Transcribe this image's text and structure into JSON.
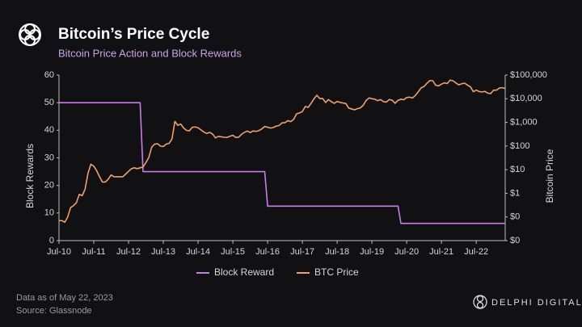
{
  "chart_data": {
    "type": "line",
    "title": "Bitcoin’s Price Cycle",
    "subtitle": "Bitcoin Price Action and Block Rewards",
    "ylabel": "Block Rewards",
    "y2label": "Bitcoin Price",
    "x": [
      "2010-07",
      "2010-08",
      "2010-09",
      "2010-10",
      "2010-11",
      "2010-12",
      "2011-01",
      "2011-02",
      "2011-03",
      "2011-04",
      "2011-05",
      "2011-06",
      "2011-07",
      "2011-08",
      "2011-09",
      "2011-10",
      "2011-11",
      "2011-12",
      "2012-01",
      "2012-02",
      "2012-03",
      "2012-04",
      "2012-05",
      "2012-06",
      "2012-07",
      "2012-08",
      "2012-09",
      "2012-10",
      "2012-11",
      "2012-12",
      "2013-01",
      "2013-02",
      "2013-03",
      "2013-04",
      "2013-05",
      "2013-06",
      "2013-07",
      "2013-08",
      "2013-09",
      "2013-10",
      "2013-11",
      "2013-12",
      "2014-01",
      "2014-02",
      "2014-03",
      "2014-04",
      "2014-05",
      "2014-06",
      "2014-07",
      "2014-08",
      "2014-09",
      "2014-10",
      "2014-11",
      "2014-12",
      "2015-01",
      "2015-02",
      "2015-03",
      "2015-04",
      "2015-05",
      "2015-06",
      "2015-07",
      "2015-08",
      "2015-09",
      "2015-10",
      "2015-11",
      "2015-12",
      "2016-01",
      "2016-02",
      "2016-03",
      "2016-04",
      "2016-05",
      "2016-06",
      "2016-07",
      "2016-08",
      "2016-09",
      "2016-10",
      "2016-11",
      "2016-12",
      "2017-01",
      "2017-02",
      "2017-03",
      "2017-04",
      "2017-05",
      "2017-06",
      "2017-07",
      "2017-08",
      "2017-09",
      "2017-10",
      "2017-11",
      "2017-12",
      "2018-01",
      "2018-02",
      "2018-03",
      "2018-04",
      "2018-05",
      "2018-06",
      "2018-07",
      "2018-08",
      "2018-09",
      "2018-10",
      "2018-11",
      "2018-12",
      "2019-01",
      "2019-02",
      "2019-03",
      "2019-04",
      "2019-05",
      "2019-06",
      "2019-07",
      "2019-08",
      "2019-09",
      "2019-10",
      "2019-11",
      "2019-12",
      "2020-01",
      "2020-02",
      "2020-03",
      "2020-04",
      "2020-05",
      "2020-06",
      "2020-07",
      "2020-08",
      "2020-09",
      "2020-10",
      "2020-11",
      "2020-12",
      "2021-01",
      "2021-02",
      "2021-03",
      "2021-04",
      "2021-05",
      "2021-06",
      "2021-07",
      "2021-08",
      "2021-09",
      "2021-10",
      "2021-11",
      "2021-12",
      "2022-01",
      "2022-02",
      "2022-03",
      "2022-04",
      "2022-05",
      "2022-06",
      "2022-07",
      "2022-08",
      "2022-09",
      "2022-10",
      "2022-11",
      "2022-12",
      "2023-01",
      "2023-02",
      "2023-03",
      "2023-04",
      "2023-05"
    ],
    "series": [
      {
        "name": "Block Reward",
        "color": "#c97be6",
        "axis": "y",
        "values": [
          50,
          50,
          50,
          50,
          50,
          50,
          50,
          50,
          50,
          50,
          50,
          50,
          50,
          50,
          50,
          50,
          50,
          50,
          50,
          50,
          50,
          50,
          50,
          50,
          50,
          50,
          50,
          50,
          50,
          25,
          25,
          25,
          25,
          25,
          25,
          25,
          25,
          25,
          25,
          25,
          25,
          25,
          25,
          25,
          25,
          25,
          25,
          25,
          25,
          25,
          25,
          25,
          25,
          25,
          25,
          25,
          25,
          25,
          25,
          25,
          25,
          25,
          25,
          25,
          25,
          25,
          25,
          25,
          25,
          25,
          25,
          25,
          12.5,
          12.5,
          12.5,
          12.5,
          12.5,
          12.5,
          12.5,
          12.5,
          12.5,
          12.5,
          12.5,
          12.5,
          12.5,
          12.5,
          12.5,
          12.5,
          12.5,
          12.5,
          12.5,
          12.5,
          12.5,
          12.5,
          12.5,
          12.5,
          12.5,
          12.5,
          12.5,
          12.5,
          12.5,
          12.5,
          12.5,
          12.5,
          12.5,
          12.5,
          12.5,
          12.5,
          12.5,
          12.5,
          12.5,
          12.5,
          12.5,
          12.5,
          12.5,
          12.5,
          12.5,
          12.5,
          6.25,
          6.25,
          6.25,
          6.25,
          6.25,
          6.25,
          6.25,
          6.25,
          6.25,
          6.25,
          6.25,
          6.25,
          6.25,
          6.25,
          6.25,
          6.25,
          6.25,
          6.25,
          6.25,
          6.25,
          6.25,
          6.25,
          6.25,
          6.25,
          6.25,
          6.25,
          6.25,
          6.25,
          6.25,
          6.25,
          6.25,
          6.25,
          6.25,
          6.25,
          6.25,
          6.25,
          6.25
        ]
      },
      {
        "name": "BTC Price",
        "color": "#f0a06a",
        "axis": "y2",
        "values": [
          0.07,
          0.07,
          0.06,
          0.1,
          0.25,
          0.3,
          0.4,
          0.9,
          0.8,
          1.5,
          7,
          17,
          14,
          9,
          5,
          3,
          3,
          4,
          6,
          5,
          5,
          5,
          5,
          6.5,
          8.5,
          11,
          12,
          11,
          12,
          13,
          20,
          33,
          90,
          120,
          125,
          100,
          95,
          120,
          130,
          200,
          1100,
          750,
          850,
          580,
          460,
          440,
          620,
          640,
          590,
          480,
          390,
          340,
          380,
          320,
          220,
          255,
          245,
          235,
          230,
          260,
          285,
          230,
          236,
          315,
          380,
          430,
          370,
          435,
          415,
          450,
          530,
          670,
          625,
          575,
          610,
          700,
          740,
          960,
          970,
          1190,
          1080,
          1350,
          2300,
          2500,
          2870,
          4700,
          4300,
          6400,
          9900,
          14000,
          10200,
          10300,
          6900,
          9200,
          7500,
          6400,
          7700,
          7000,
          6600,
          6300,
          4000,
          3700,
          3400,
          3800,
          4100,
          5300,
          8500,
          10800,
          10000,
          9600,
          8300,
          9200,
          7500,
          7200,
          9300,
          8600,
          6400,
          8600,
          9500,
          9100,
          11300,
          11600,
          10800,
          13800,
          19700,
          29000,
          33000,
          45000,
          58800,
          57700,
          37300,
          35000,
          41500,
          47100,
          43800,
          61300,
          57000,
          46300,
          38500,
          43200,
          45500,
          37700,
          31800,
          19900,
          23300,
          20000,
          19400,
          20500,
          17200,
          16500,
          23100,
          23100,
          28500,
          29300,
          27000
        ]
      }
    ],
    "xlim": [
      "2010-07",
      "2023-05"
    ],
    "xticks": [
      {
        "value": "2010-07",
        "label": "Jul-10"
      },
      {
        "value": "2011-07",
        "label": "Jul-11"
      },
      {
        "value": "2012-07",
        "label": "Jul-12"
      },
      {
        "value": "2013-07",
        "label": "Jul-13"
      },
      {
        "value": "2014-07",
        "label": "Jul-14"
      },
      {
        "value": "2015-07",
        "label": "Jul-15"
      },
      {
        "value": "2016-07",
        "label": "Jul-16"
      },
      {
        "value": "2017-07",
        "label": "Jul-17"
      },
      {
        "value": "2018-07",
        "label": "Jul-18"
      },
      {
        "value": "2019-07",
        "label": "Jul-19"
      },
      {
        "value": "2020-07",
        "label": "Jul-20"
      },
      {
        "value": "2021-07",
        "label": "Jul-21"
      },
      {
        "value": "2022-07",
        "label": "Jul-22"
      }
    ],
    "ylim": [
      0,
      60
    ],
    "yticks": [
      0,
      10,
      20,
      30,
      40,
      50,
      60
    ],
    "y2lim": [
      0.01,
      100000
    ],
    "y2scale": "log",
    "y2ticks": [
      {
        "value": 0.01,
        "label": "$0"
      },
      {
        "value": 0.1,
        "label": "$0"
      },
      {
        "value": 1,
        "label": "$1"
      },
      {
        "value": 10,
        "label": "$10"
      },
      {
        "value": 100,
        "label": "$100"
      },
      {
        "value": 1000,
        "label": "$1,000"
      },
      {
        "value": 10000,
        "label": "$10,000"
      },
      {
        "value": 100000,
        "label": "$100,000"
      }
    ]
  },
  "footer": {
    "note": "Data as of May 22, 2023",
    "source": "Source: Glassnode",
    "brand": "DELPHI DIGITAL"
  }
}
